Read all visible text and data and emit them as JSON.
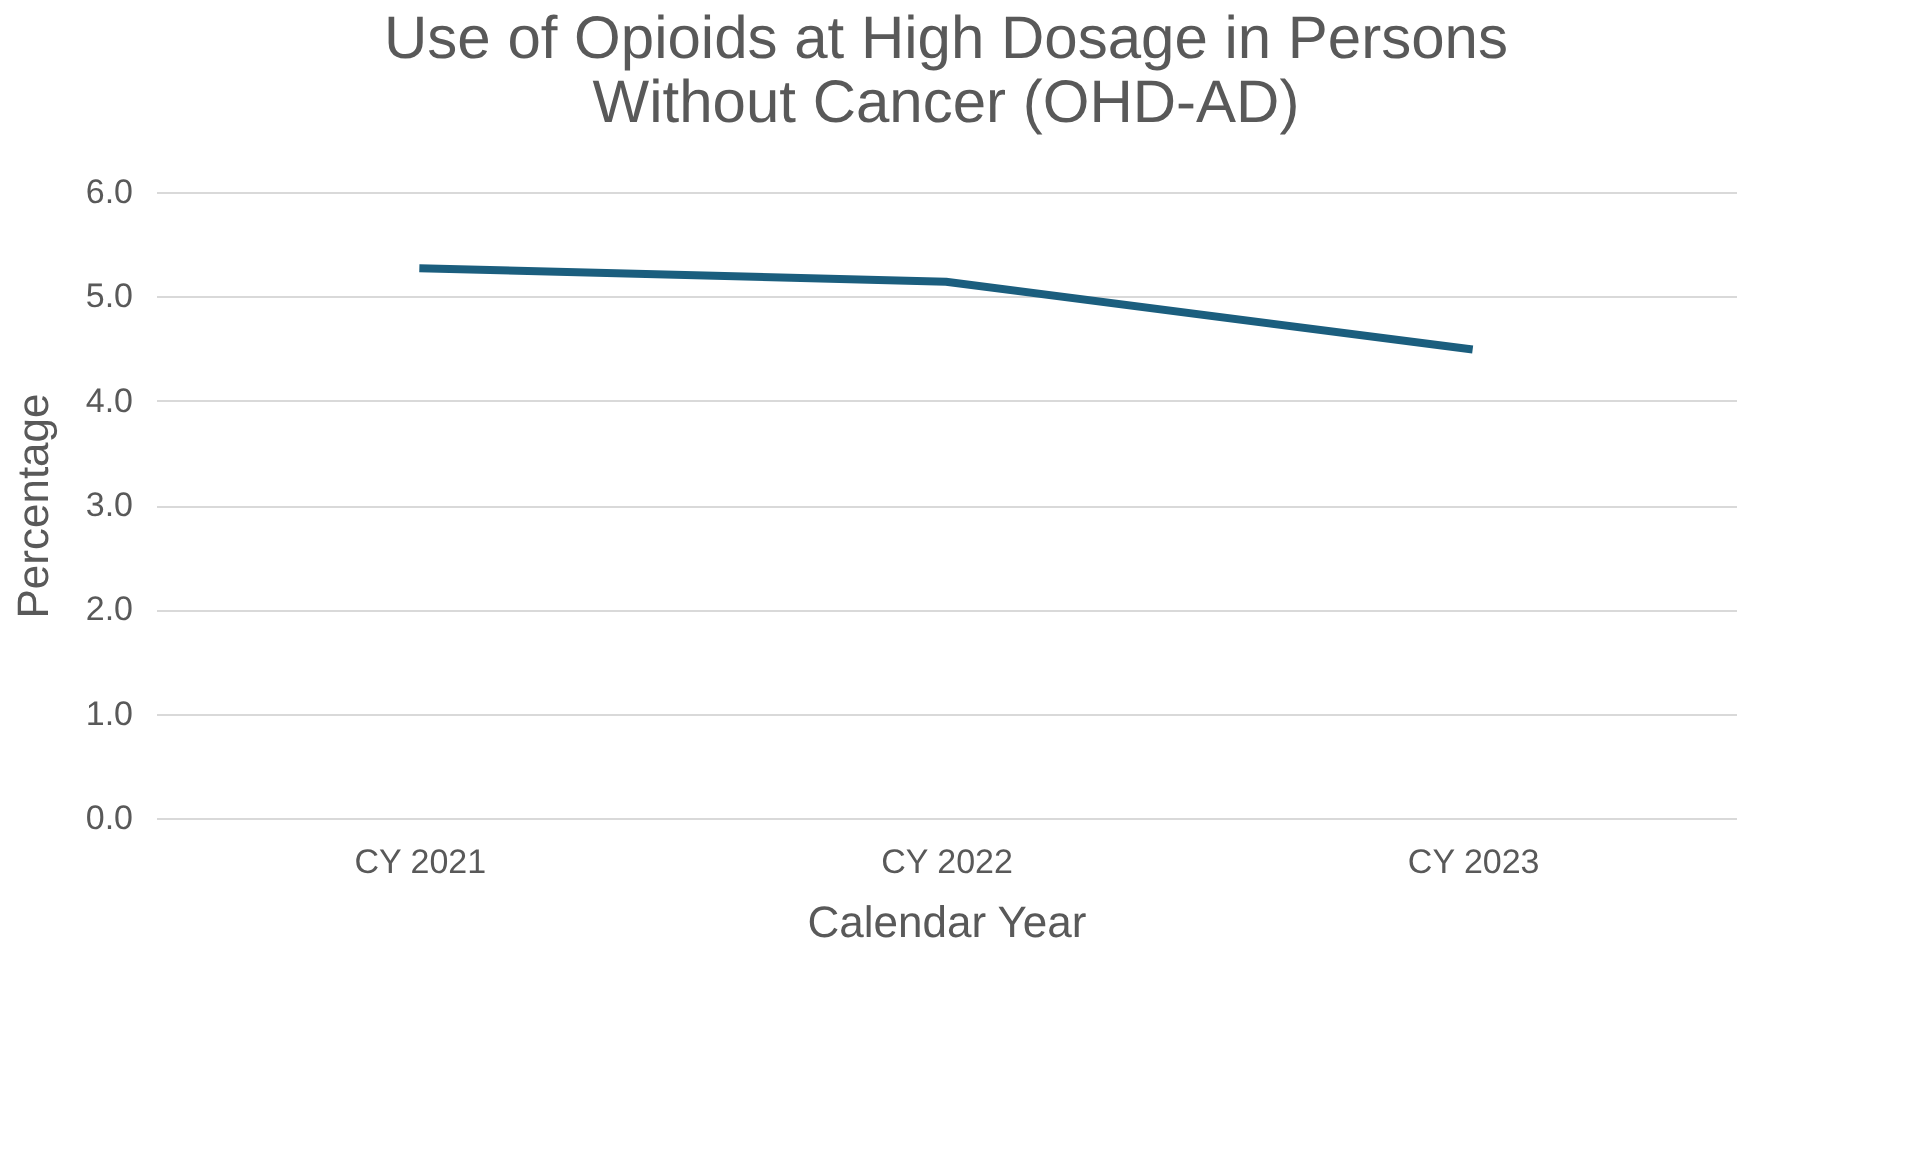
{
  "chart_data": {
    "type": "line",
    "title": "Use of Opioids at High Dosage in Persons Without Cancer (OHD-AD)",
    "xlabel": "Calendar Year",
    "ylabel": "Percentage",
    "categories": [
      "CY 2021",
      "CY 2022",
      "CY 2023"
    ],
    "series": [
      {
        "color": "#1b5e7e",
        "values": [
          5.27,
          5.14,
          4.49
        ]
      }
    ],
    "ylim": [
      0,
      6
    ],
    "yticks": [
      {
        "value": 0,
        "label": "0.0"
      },
      {
        "value": 1,
        "label": "1.0"
      },
      {
        "value": 2,
        "label": "2.0"
      },
      {
        "value": 3,
        "label": "3.0"
      },
      {
        "value": 4,
        "label": "4.0"
      },
      {
        "value": 5,
        "label": "5.0"
      },
      {
        "value": 6,
        "label": "6.0"
      }
    ],
    "grid": "y",
    "marker": "none",
    "line_style": "solid"
  }
}
